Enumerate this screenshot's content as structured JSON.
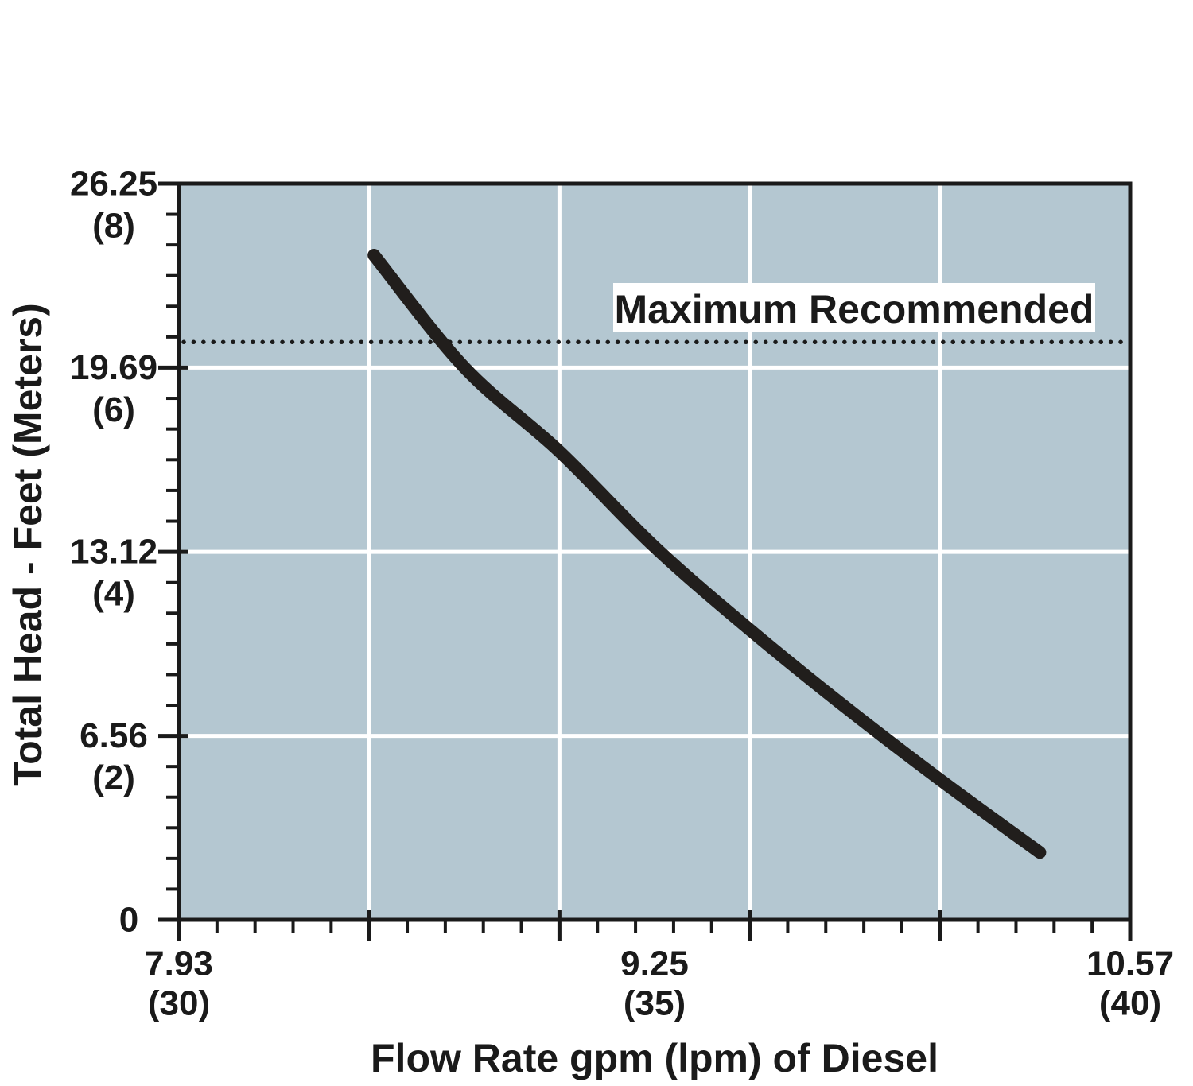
{
  "chart_data": {
    "type": "line",
    "x_title": "Flow Rate gpm (lpm) of Diesel",
    "y_title": "Total Head - Feet (Meters)",
    "x_units": [
      "gpm",
      "lpm"
    ],
    "y_units": [
      "feet",
      "meters"
    ],
    "x_range_lpm": [
      30,
      40
    ],
    "x_range_gpm": [
      7.93,
      10.57
    ],
    "y_range_ft": [
      0,
      26.25
    ],
    "y_range_m": [
      0,
      8
    ],
    "x_gridlines_lpm": [
      32,
      34,
      36,
      38
    ],
    "y_gridlines_ft": [
      6.56,
      13.12,
      19.69
    ],
    "x_major_ticks_lpm": [
      30,
      32,
      34,
      36,
      38,
      40
    ],
    "x_minor_ticks_between_majors": 4,
    "y_major_ticks_ft": [
      0,
      6.56,
      13.12,
      19.69,
      26.25
    ],
    "y_minor_ticks_between_majors": 5,
    "x_tick_labels": [
      {
        "primary": "7.93",
        "secondary": "(30)",
        "lpm": 30
      },
      {
        "primary": "9.25",
        "secondary": "(35)",
        "lpm": 35
      },
      {
        "primary": "10.57",
        "secondary": "(40)",
        "lpm": 40
      }
    ],
    "y_tick_labels": [
      {
        "primary": "26.25",
        "secondary": "(8)",
        "ft": 26.25
      },
      {
        "primary": "19.69",
        "secondary": "(6)",
        "ft": 19.69
      },
      {
        "primary": "13.12",
        "secondary": "(4)",
        "ft": 13.12
      },
      {
        "primary": "6.56",
        "secondary": "(2)",
        "ft": 6.56
      },
      {
        "primary": "0",
        "secondary": "",
        "ft": 0
      }
    ],
    "max_recommended": {
      "label": "Maximum Recommended",
      "head_ft": 20.6,
      "line_style": "dotted"
    },
    "series": [
      {
        "name": "pump-head-curve",
        "points_lpm_ft": [
          [
            32.05,
            23.7
          ],
          [
            33.0,
            19.7
          ],
          [
            34.0,
            16.7
          ],
          [
            35.0,
            13.3
          ],
          [
            36.0,
            10.35
          ],
          [
            37.0,
            7.6
          ],
          [
            38.0,
            5.0
          ],
          [
            39.05,
            2.4
          ]
        ]
      }
    ],
    "legend": "none",
    "grid": "on",
    "colors": {
      "plot_bg": "#b4c7d1",
      "grid": "#ffffff",
      "axis": "#1a1a1a",
      "curve": "#211e1c",
      "text": "#1a1a1a",
      "label_bg": "#ffffff"
    }
  }
}
